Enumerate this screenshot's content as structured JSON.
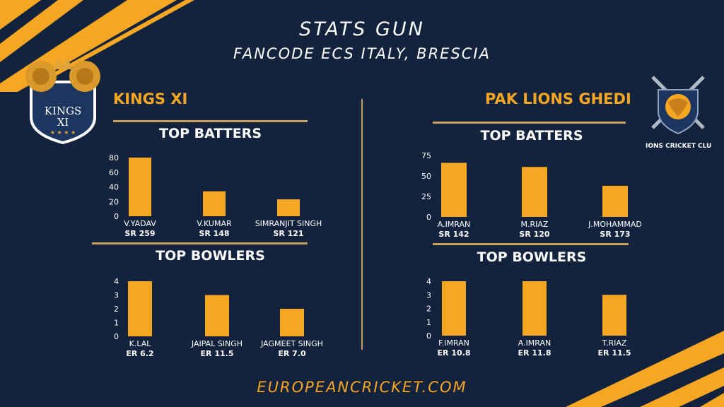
{
  "header": {
    "title": "STATS GUN",
    "subtitle": "FANCODE ECS ITALY, BRESCIA"
  },
  "footer": {
    "site": "EUROPEANCRICKET.COM"
  },
  "teams": [
    {
      "name": "KINGS XI",
      "logo_text": "KINGS XI"
    },
    {
      "name": "PAK LIONS GHEDI",
      "logo_text": "IONS CRICKET CLU"
    }
  ],
  "sections": {
    "batters": "TOP BATTERS",
    "bowlers": "TOP BOWLERS"
  },
  "colors": {
    "bar": "#f5a623",
    "background": "#13233d",
    "accent": "#f5a623",
    "rule": "#c8a25a"
  },
  "chart_data": [
    {
      "type": "bar",
      "id": "kings-batters",
      "title": "TOP BATTERS",
      "categories": [
        "V.YADAV",
        "V.KUMAR",
        "SIMRANJIT SINGH"
      ],
      "values": [
        80,
        34,
        23
      ],
      "sublabels": [
        "SR 259",
        "SR 148",
        "SR 121"
      ],
      "yticks": [
        0,
        20,
        40,
        60,
        80
      ],
      "ylim": [
        0,
        80
      ]
    },
    {
      "type": "bar",
      "id": "kings-bowlers",
      "title": "TOP BOWLERS",
      "categories": [
        "K.LAL",
        "JAIPAL SINGH",
        "JAGMEET SINGH"
      ],
      "values": [
        4,
        3,
        2
      ],
      "sublabels": [
        "ER 6.2",
        "ER 11.5",
        "ER 7.0"
      ],
      "yticks": [
        0,
        1,
        2,
        3,
        4
      ],
      "ylim": [
        0,
        4
      ]
    },
    {
      "type": "bar",
      "id": "lions-batters",
      "title": "TOP BATTERS",
      "categories": [
        "A.IMRAN",
        "M.RIAZ",
        "J.MOHAMMAD"
      ],
      "values": [
        66,
        61,
        38
      ],
      "sublabels": [
        "SR 142",
        "SR 120",
        "SR 173"
      ],
      "yticks": [
        0,
        25,
        50,
        75
      ],
      "ylim": [
        0,
        75
      ]
    },
    {
      "type": "bar",
      "id": "lions-bowlers",
      "title": "TOP BOWLERS",
      "categories": [
        "F.IMRAN",
        "A.IMRAN",
        "T.RIAZ"
      ],
      "values": [
        4,
        4,
        3
      ],
      "sublabels": [
        "ER 10.8",
        "ER 11.8",
        "ER 11.5"
      ],
      "yticks": [
        0,
        1,
        2,
        3,
        4
      ],
      "ylim": [
        0,
        4
      ]
    }
  ]
}
